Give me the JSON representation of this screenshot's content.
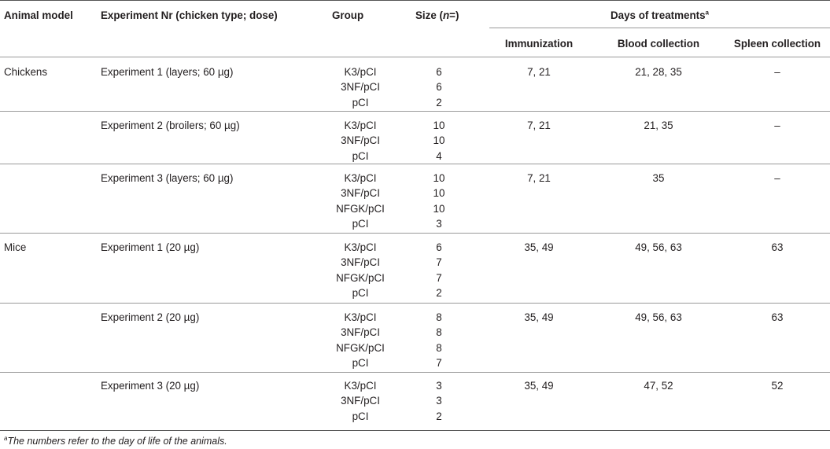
{
  "headers": {
    "animal_model": "Animal model",
    "experiment": "Experiment Nr (chicken type; dose)",
    "group": "Group",
    "size_prefix": "Size (",
    "size_n": "n",
    "size_suffix": "=)",
    "days": "Days of treatments",
    "days_sup": "a",
    "immunization": "Immunization",
    "blood": "Blood collection",
    "spleen": "Spleen collection"
  },
  "rows": [
    {
      "model": "Chickens",
      "experiment": "Experiment 1 (layers; 60 µg)",
      "groups": [
        "K3/pCI",
        "3NF/pCI",
        "pCI"
      ],
      "sizes": [
        "6",
        "6",
        "2"
      ],
      "immunization": "7, 21",
      "blood": "21, 28, 35",
      "spleen": "–"
    },
    {
      "model": "",
      "experiment": "Experiment 2 (broilers; 60 µg)",
      "groups": [
        "K3/pCI",
        "3NF/pCI",
        "pCI"
      ],
      "sizes": [
        "10",
        "10",
        "4"
      ],
      "immunization": "7, 21",
      "blood": "21, 35",
      "spleen": "–"
    },
    {
      "model": "",
      "experiment": "Experiment 3 (layers; 60 µg)",
      "groups": [
        "K3/pCI",
        "3NF/pCI",
        "NFGK/pCI",
        "pCI"
      ],
      "sizes": [
        "10",
        "10",
        "10",
        "3"
      ],
      "immunization": "7, 21",
      "blood": "35",
      "spleen": "–"
    },
    {
      "model": "Mice",
      "experiment": "Experiment 1 (20 µg)",
      "groups": [
        "K3/pCI",
        "3NF/pCI",
        "NFGK/pCI",
        "pCI"
      ],
      "sizes": [
        "6",
        "7",
        "7",
        "2"
      ],
      "immunization": "35, 49",
      "blood": "49, 56, 63",
      "spleen": "63"
    },
    {
      "model": "",
      "experiment": "Experiment 2 (20 µg)",
      "groups": [
        "K3/pCI",
        "3NF/pCI",
        "NFGK/pCI",
        "pCI"
      ],
      "sizes": [
        "8",
        "8",
        "8",
        "7"
      ],
      "immunization": "35, 49",
      "blood": "49, 56, 63",
      "spleen": "63"
    },
    {
      "model": "",
      "experiment": "Experiment 3 (20 µg)",
      "groups": [
        "K3/pCI",
        "3NF/pCI",
        "pCI"
      ],
      "sizes": [
        "3",
        "3",
        "2"
      ],
      "immunization": "35, 49",
      "blood": "47, 52",
      "spleen": "52"
    }
  ],
  "footnote_sup": "a",
  "footnote": "The numbers refer to the day of life of the animals."
}
